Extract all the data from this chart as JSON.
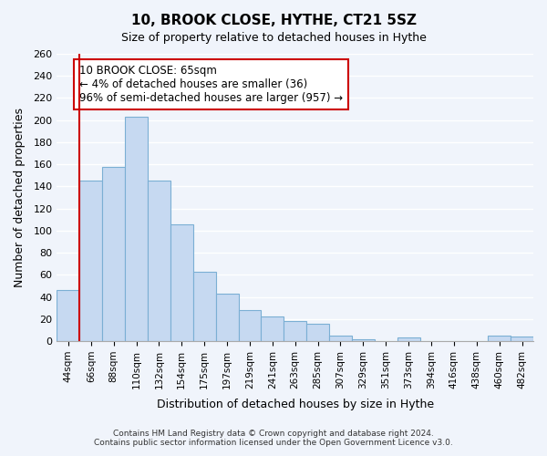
{
  "title": "10, BROOK CLOSE, HYTHE, CT21 5SZ",
  "subtitle": "Size of property relative to detached houses in Hythe",
  "xlabel": "Distribution of detached houses by size in Hythe",
  "ylabel": "Number of detached properties",
  "bin_labels": [
    "44sqm",
    "66sqm",
    "88sqm",
    "110sqm",
    "132sqm",
    "154sqm",
    "175sqm",
    "197sqm",
    "219sqm",
    "241sqm",
    "263sqm",
    "285sqm",
    "307sqm",
    "329sqm",
    "351sqm",
    "373sqm",
    "394sqm",
    "416sqm",
    "438sqm",
    "460sqm",
    "482sqm"
  ],
  "bar_heights": [
    46,
    145,
    158,
    203,
    145,
    106,
    63,
    43,
    28,
    22,
    18,
    16,
    5,
    2,
    0,
    3,
    0,
    0,
    0,
    5,
    4
  ],
  "bar_color": "#c6d9f1",
  "bar_edge_color": "#7bafd4",
  "highlight_color": "#cc0000",
  "annotation_text": "10 BROOK CLOSE: 65sqm\n← 4% of detached houses are smaller (36)\n96% of semi-detached houses are larger (957) →",
  "annotation_box_color": "#ffffff",
  "annotation_box_edge": "#cc0000",
  "ylim": [
    0,
    260
  ],
  "yticks": [
    0,
    20,
    40,
    60,
    80,
    100,
    120,
    140,
    160,
    180,
    200,
    220,
    240,
    260
  ],
  "footer_line1": "Contains HM Land Registry data © Crown copyright and database right 2024.",
  "footer_line2": "Contains public sector information licensed under the Open Government Licence v3.0.",
  "bg_color": "#f0f4fb",
  "grid_color": "#ffffff"
}
